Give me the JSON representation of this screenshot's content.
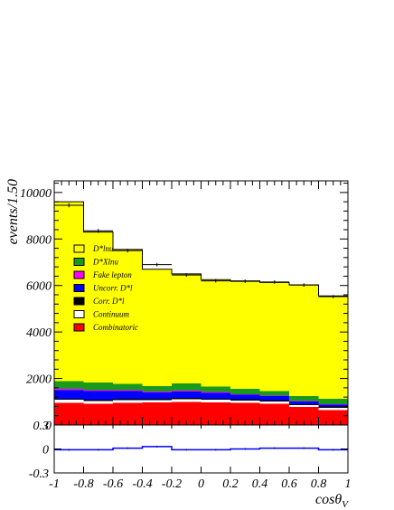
{
  "chart_data": {
    "type": "bar",
    "subtype": "stacked-histogram",
    "x": {
      "label": "cosθ",
      "label_subscript": "V",
      "range": [
        -1,
        1
      ],
      "bin_width": 0.2,
      "bin_edges": [
        -1,
        -0.8,
        -0.6,
        -0.4,
        -0.2,
        0,
        0.2,
        0.4,
        0.6,
        0.8,
        1
      ],
      "ticks": [
        -1,
        -0.8,
        -0.6,
        -0.4,
        -0.2,
        0,
        0.2,
        0.4,
        0.6,
        0.8,
        1
      ],
      "tick_labels": [
        "-1",
        "-0.8",
        "-0.6",
        "-0.4",
        "-0.2",
        "0",
        "0.2",
        "0.4",
        "0.6",
        "0.8",
        "1"
      ]
    },
    "y": {
      "label": "events/1.50",
      "range": [
        0,
        10500
      ],
      "ticks": [
        0,
        2000,
        4000,
        6000,
        8000,
        10000
      ],
      "tick_labels": [
        "0",
        "2000",
        "4000",
        "6000",
        "8000",
        "10000"
      ]
    },
    "legend": {
      "placement": "left-center",
      "entries": [
        {
          "label": "D*lnu",
          "color": "#ffff00"
        },
        {
          "label": "D*Xlnu",
          "color": "#1a9a1a"
        },
        {
          "label": "Fake lepton",
          "color": "#ff00ff"
        },
        {
          "label": "Uncorr. D*l",
          "color": "#0000ff"
        },
        {
          "label": "Corr. D*l",
          "color": "#000000"
        },
        {
          "label": "Continuum",
          "color": "#ffffff"
        },
        {
          "label": "Combinatoric",
          "color": "#ff0000"
        }
      ]
    },
    "stack_order": [
      "Combinatoric",
      "Continuum",
      "Corr. D*l",
      "Uncorr. D*l",
      "Fake lepton",
      "D*Xlnu",
      "D*lnu"
    ],
    "series": [
      {
        "name": "Combinatoric",
        "color": "#ff0000",
        "values": [
          950,
          920,
          960,
          970,
          1000,
          970,
          950,
          920,
          780,
          650
        ]
      },
      {
        "name": "Continuum",
        "color": "#ffffff",
        "values": [
          130,
          120,
          110,
          100,
          110,
          110,
          100,
          100,
          70,
          90
        ]
      },
      {
        "name": "Corr. D*l",
        "color": "#000000",
        "values": [
          50,
          50,
          50,
          50,
          50,
          50,
          50,
          50,
          50,
          50
        ]
      },
      {
        "name": "Uncorr. D*l",
        "color": "#0000ff",
        "values": [
          370,
          360,
          330,
          280,
          280,
          250,
          200,
          170,
          120,
          90
        ]
      },
      {
        "name": "Fake lepton",
        "color": "#ff00ff",
        "values": [
          60,
          50,
          40,
          30,
          30,
          30,
          20,
          20,
          20,
          20
        ]
      },
      {
        "name": "D*Xlnu",
        "color": "#1a9a1a",
        "values": [
          320,
          320,
          280,
          250,
          310,
          250,
          240,
          190,
          210,
          230
        ]
      },
      {
        "name": "D*lnu",
        "color": "#ffff00",
        "values": [
          7720,
          6480,
          5780,
          5020,
          4720,
          4590,
          4640,
          4680,
          4780,
          4420
        ]
      }
    ],
    "data_points": {
      "style": "crosses",
      "x": [
        -0.9,
        -0.7,
        -0.5,
        -0.3,
        -0.1,
        0.1,
        0.3,
        0.5,
        0.7,
        0.9
      ],
      "y": [
        9450,
        8350,
        7500,
        6900,
        6450,
        6200,
        6180,
        6150,
        6020,
        5520
      ],
      "yerr": [
        90,
        85,
        80,
        75,
        75,
        75,
        75,
        75,
        75,
        70
      ]
    },
    "residual_panel": {
      "ylim": [
        -0.3,
        0.3
      ],
      "ticks": [
        -0.3,
        0,
        0.3
      ],
      "tick_labels": [
        "-0.3",
        "0",
        "0.3"
      ],
      "residual_line_color": "#0000ff",
      "values": [
        -0.01,
        -0.01,
        0.01,
        0.03,
        -0.01,
        -0.01,
        0.0,
        0.01,
        0.01,
        -0.01
      ],
      "errors": [
        0.01,
        0.01,
        0.01,
        0.01,
        0.01,
        0.01,
        0.01,
        0.01,
        0.01,
        0.01
      ]
    }
  }
}
